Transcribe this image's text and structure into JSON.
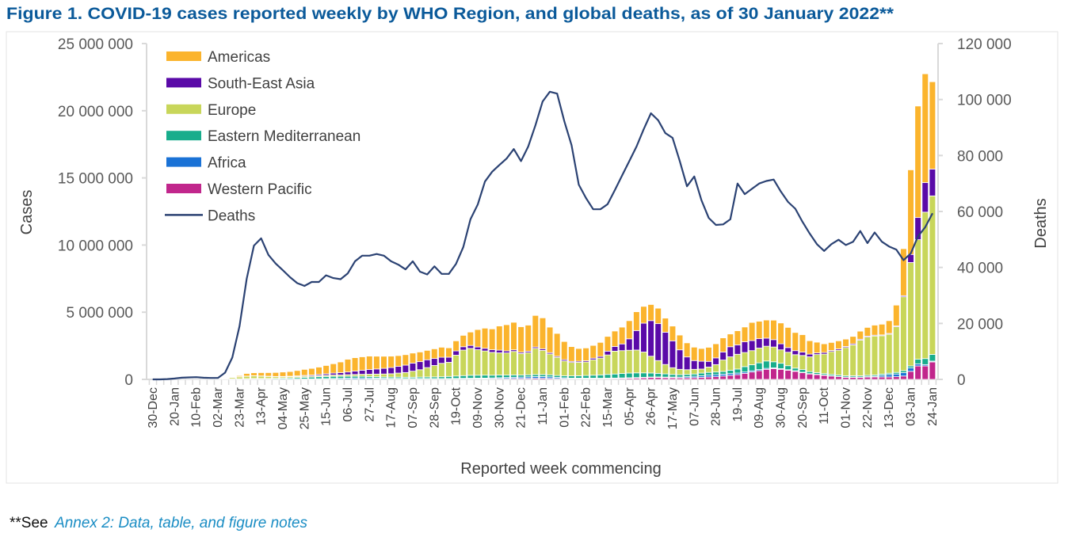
{
  "figure": {
    "title": "Figure 1. COVID-19 cases reported weekly by WHO Region, and global deaths, as of 30 January 2022**",
    "footnote_prefix": "**See",
    "footnote_link": "Annex 2: Data, table, and figure notes",
    "title_color": "#0b5a9a",
    "link_color": "#1a8dc4"
  },
  "chart_data": {
    "type": "bar",
    "stacked": true,
    "xlabel": "Reported week commencing",
    "x_tick_labels": [
      "30-Dec",
      "20-Jan",
      "10-Feb",
      "02-Mar",
      "23-Mar",
      "13-Apr",
      "04-May",
      "25-May",
      "15-Jun",
      "06-Jul",
      "27-Jul",
      "17-Aug",
      "07-Sep",
      "28-Sep",
      "19-Oct",
      "09-Nov",
      "30-Nov",
      "21-Dec",
      "11-Jan",
      "01-Feb",
      "22-Feb",
      "15-Mar",
      "05-Apr",
      "26-Apr",
      "17-May",
      "07-Jun",
      "28-Jun",
      "19-Jul",
      "09-Aug",
      "30-Aug",
      "20-Sep",
      "11-Oct",
      "01-Nov",
      "22-Nov",
      "13-Dec",
      "03-Jan",
      "24-Jan"
    ],
    "x_tick_every_weeks": 3,
    "y_left": {
      "label": "Cases",
      "range": [
        0,
        25000000
      ],
      "tick_values": [
        0,
        5000000,
        10000000,
        15000000,
        20000000,
        25000000
      ],
      "tick_labels": [
        "0",
        "5 000 000",
        "10 000 000",
        "15 000 000",
        "20 000 000",
        "25 000 000"
      ]
    },
    "y_right": {
      "label": "Deaths",
      "range": [
        0,
        120000
      ],
      "tick_values": [
        0,
        20000,
        40000,
        60000,
        80000,
        100000,
        120000
      ],
      "tick_labels": [
        "0",
        "20 000",
        "40 000",
        "60 000",
        "80 000",
        "100 000",
        "120 000"
      ]
    },
    "grid": false,
    "legend_position": "top-left",
    "series": [
      {
        "name": "Americas",
        "color": "#fbb42d",
        "axis": "left",
        "type": "bar",
        "values": [
          0,
          0,
          0,
          0,
          0,
          0,
          0,
          0,
          0,
          0,
          10000.0,
          40000.0,
          80000.0,
          200000.0,
          220000.0,
          250000.0,
          270000.0,
          300000.0,
          330000.0,
          350000.0,
          400000.0,
          450000.0,
          500000.0,
          550000.0,
          620000.0,
          700000.0,
          800000.0,
          950000.0,
          1000000.0,
          1000000.0,
          1000000.0,
          950000.0,
          900000.0,
          850000.0,
          800000.0,
          780000.0,
          750000.0,
          720000.0,
          700000.0,
          720000.0,
          750000.0,
          700000.0,
          750000.0,
          850000.0,
          1000000.0,
          1300000.0,
          1500000.0,
          1550000.0,
          1800000.0,
          1950000.0,
          2050000.0,
          1900000.0,
          1950000.0,
          2350000.0,
          2300000.0,
          1900000.0,
          1700000.0,
          1350000.0,
          1100000.0,
          950000.0,
          950000.0,
          950000.0,
          1050000.0,
          1100000.0,
          1150000.0,
          1250000.0,
          1350000.0,
          1400000.0,
          1250000.0,
          1200000.0,
          1150000.0,
          1050000.0,
          1100000.0,
          1100000.0,
          1050000.0,
          1000000.0,
          950000.0,
          1050000.0,
          1050000.0,
          1050000.0,
          950000.0,
          1050000.0,
          1100000.0,
          1350000.0,
          1300000.0,
          1350000.0,
          1450000.0,
          1550000.0,
          1500000.0,
          1350000.0,
          1300000.0,
          1000000.0,
          800000.0,
          650000.0,
          600000.0,
          600000.0,
          550000.0,
          550000.0,
          600000.0,
          650000.0,
          750000.0,
          800000.0,
          950000.0,
          1550000.0,
          3500000.0,
          6300000.0,
          8300000.0,
          8100000.0,
          6500000.0
        ]
      },
      {
        "name": "South-East Asia",
        "color": "#5a0aa8",
        "axis": "left",
        "type": "bar",
        "values": [
          0,
          0,
          0,
          0,
          0,
          0,
          0,
          0,
          0,
          0,
          0,
          0,
          10000.0,
          10000.0,
          10000.0,
          10000.0,
          20000.0,
          20000.0,
          30000.0,
          40000.0,
          50000.0,
          60000.0,
          70000.0,
          90000.0,
          110000.0,
          140000.0,
          170000.0,
          200000.0,
          250000.0,
          300000.0,
          350000.0,
          380000.0,
          420000.0,
          460000.0,
          500000.0,
          550000.0,
          600000.0,
          600000.0,
          580000.0,
          520000.0,
          450000.0,
          380000.0,
          320000.0,
          250000.0,
          220000.0,
          200000.0,
          200000.0,
          200000.0,
          200000.0,
          150000.0,
          120000.0,
          100000.0,
          100000.0,
          100000.0,
          120000.0,
          100000.0,
          80000.0,
          100000.0,
          80000.0,
          80000.0,
          100000.0,
          120000.0,
          120000.0,
          280000.0,
          350000.0,
          500000.0,
          850000.0,
          1450000.0,
          2150000.0,
          2650000.0,
          2750000.0,
          2400000.0,
          2000000.0,
          1450000.0,
          950000.0,
          650000.0,
          580000.0,
          420000.0,
          500000.0,
          600000.0,
          750000.0,
          700000.0,
          800000.0,
          750000.0,
          700000.0,
          600000.0,
          550000.0,
          450000.0,
          350000.0,
          300000.0,
          250000.0,
          200000.0,
          120000.0,
          120000.0,
          80000.0,
          100000.0,
          80000.0,
          80000.0,
          70000.0,
          70000.0,
          60000.0,
          60000.0,
          60000.0,
          60000.0,
          80000.0,
          600000.0,
          1650000.0,
          2200000.0,
          2000000.0
        ]
      },
      {
        "name": "Europe",
        "color": "#c8d65a",
        "axis": "left",
        "type": "bar",
        "values": [
          0,
          0,
          0,
          0,
          0,
          0,
          0,
          2000.0,
          10000.0,
          20000.0,
          50000.0,
          100000.0,
          150000.0,
          180000.0,
          200000.0,
          180000.0,
          150000.0,
          120000.0,
          100000.0,
          90000.0,
          80000.0,
          80000.0,
          80000.0,
          80000.0,
          90000.0,
          100000.0,
          100000.0,
          120000.0,
          130000.0,
          150000.0,
          170000.0,
          200000.0,
          220000.0,
          250000.0,
          300000.0,
          350000.0,
          450000.0,
          550000.0,
          700000.0,
          850000.0,
          1000000.0,
          1050000.0,
          1550000.0,
          1900000.0,
          2000000.0,
          1900000.0,
          1800000.0,
          1700000.0,
          1650000.0,
          1650000.0,
          1750000.0,
          1600000.0,
          1650000.0,
          1950000.0,
          1800000.0,
          1550000.0,
          1350000.0,
          1100000.0,
          1000000.0,
          1000000.0,
          1000000.0,
          1150000.0,
          1250000.0,
          1450000.0,
          1700000.0,
          1700000.0,
          1700000.0,
          1700000.0,
          1550000.0,
          1250000.0,
          950000.0,
          700000.0,
          500000.0,
          400000.0,
          350000.0,
          350000.0,
          300000.0,
          400000.0,
          550000.0,
          850000.0,
          1000000.0,
          1100000.0,
          1050000.0,
          1050000.0,
          1100000.0,
          1100000.0,
          1100000.0,
          1000000.0,
          1000000.0,
          1000000.0,
          1050000.0,
          1100000.0,
          1350000.0,
          1450000.0,
          1700000.0,
          1850000.0,
          2100000.0,
          2300000.0,
          2650000.0,
          2850000.0,
          2900000.0,
          2850000.0,
          2900000.0,
          3400000.0,
          5500000.0,
          7700000.0,
          8900000.0,
          10900000.0,
          11800000.0
        ]
      },
      {
        "name": "Eastern Mediterranean",
        "color": "#18ad8c",
        "axis": "left",
        "type": "bar",
        "values": [
          0,
          0,
          0,
          0,
          0,
          0,
          0,
          0,
          5000.0,
          10000.0,
          20000.0,
          30000.0,
          30000.0,
          40000.0,
          50000.0,
          50000.0,
          50000.0,
          60000.0,
          70000.0,
          80000.0,
          100000.0,
          120000.0,
          130000.0,
          150000.0,
          160000.0,
          160000.0,
          150000.0,
          140000.0,
          130000.0,
          120000.0,
          110000.0,
          100000.0,
          100000.0,
          100000.0,
          100000.0,
          100000.0,
          100000.0,
          110000.0,
          120000.0,
          130000.0,
          140000.0,
          160000.0,
          180000.0,
          200000.0,
          220000.0,
          220000.0,
          220000.0,
          200000.0,
          200000.0,
          180000.0,
          170000.0,
          150000.0,
          150000.0,
          150000.0,
          150000.0,
          150000.0,
          140000.0,
          150000.0,
          170000.0,
          180000.0,
          200000.0,
          220000.0,
          250000.0,
          280000.0,
          300000.0,
          330000.0,
          350000.0,
          350000.0,
          330000.0,
          300000.0,
          270000.0,
          240000.0,
          200000.0,
          180000.0,
          170000.0,
          170000.0,
          200000.0,
          200000.0,
          200000.0,
          200000.0,
          250000.0,
          300000.0,
          400000.0,
          450000.0,
          500000.0,
          550000.0,
          450000.0,
          400000.0,
          300000.0,
          200000.0,
          200000.0,
          150000.0,
          120000.0,
          100000.0,
          100000.0,
          100000.0,
          100000.0,
          100000.0,
          100000.0,
          100000.0,
          100000.0,
          100000.0,
          100000.0,
          120000.0,
          150000.0,
          150000.0,
          350000.0,
          450000.0,
          500000.0
        ]
      },
      {
        "name": "Africa",
        "color": "#1a72d6",
        "axis": "left",
        "type": "bar",
        "values": [
          0,
          0,
          0,
          0,
          0,
          0,
          0,
          0,
          0,
          0,
          0,
          1000.0,
          2000.0,
          4000.0,
          6000.0,
          8000.0,
          10000.0,
          12000.0,
          15000.0,
          20000.0,
          25000.0,
          30000.0,
          35000.0,
          40000.0,
          50000.0,
          60000.0,
          70000.0,
          80000.0,
          90000.0,
          90000.0,
          80000.0,
          70000.0,
          60000.0,
          50000.0,
          50000.0,
          40000.0,
          40000.0,
          40000.0,
          40000.0,
          35000.0,
          35000.0,
          40000.0,
          45000.0,
          50000.0,
          50000.0,
          50000.0,
          50000.0,
          60000.0,
          70000.0,
          80000.0,
          90000.0,
          100000.0,
          120000.0,
          130000.0,
          130000.0,
          120000.0,
          90000.0,
          70000.0,
          50000.0,
          50000.0,
          50000.0,
          50000.0,
          40000.0,
          40000.0,
          40000.0,
          40000.0,
          40000.0,
          35000.0,
          35000.0,
          35000.0,
          40000.0,
          40000.0,
          50000.0,
          60000.0,
          80000.0,
          100000.0,
          120000.0,
          140000.0,
          150000.0,
          140000.0,
          130000.0,
          120000.0,
          100000.0,
          90000.0,
          80000.0,
          70000.0,
          60000.0,
          50000.0,
          40000.0,
          40000.0,
          30000.0,
          30000.0,
          30000.0,
          30000.0,
          20000.0,
          20000.0,
          20000.0,
          20000.0,
          20000.0,
          30000.0,
          50000.0,
          120000.0,
          180000.0,
          200000.0,
          250000.0,
          250000.0,
          150000.0,
          100000.0,
          60000.0
        ]
      },
      {
        "name": "Western Pacific",
        "color": "#c1268c",
        "axis": "left",
        "type": "bar",
        "values": [
          0,
          1000.0,
          5000.0,
          15000.0,
          20000.0,
          15000.0,
          10000.0,
          5000.0,
          4000.0,
          4000.0,
          4000.0,
          5000.0,
          6000.0,
          7000.0,
          7000.0,
          6000.0,
          5000.0,
          4000.0,
          4000.0,
          4000.0,
          4000.0,
          4000.0,
          4000.0,
          5000.0,
          5000.0,
          6000.0,
          7000.0,
          10000.0,
          15000.0,
          20000.0,
          25000.0,
          25000.0,
          22000.0,
          20000.0,
          20000.0,
          20000.0,
          20000.0,
          20000.0,
          20000.0,
          20000.0,
          20000.0,
          20000.0,
          25000.0,
          30000.0,
          35000.0,
          40000.0,
          45000.0,
          50000.0,
          55000.0,
          60000.0,
          70000.0,
          70000.0,
          70000.0,
          80000.0,
          80000.0,
          70000.0,
          60000.0,
          50000.0,
          40000.0,
          40000.0,
          40000.0,
          40000.0,
          45000.0,
          50000.0,
          60000.0,
          70000.0,
          80000.0,
          100000.0,
          120000.0,
          140000.0,
          140000.0,
          130000.0,
          120000.0,
          110000.0,
          120000.0,
          130000.0,
          150000.0,
          180000.0,
          200000.0,
          250000.0,
          300000.0,
          350000.0,
          450000.0,
          550000.0,
          650000.0,
          750000.0,
          800000.0,
          750000.0,
          680000.0,
          600000.0,
          500000.0,
          400000.0,
          350000.0,
          300000.0,
          250000.0,
          200000.0,
          150000.0,
          150000.0,
          150000.0,
          170000.0,
          180000.0,
          180000.0,
          180000.0,
          200000.0,
          250000.0,
          600000.0,
          1000000.0,
          1000000.0,
          1300000.0
        ]
      },
      {
        "name": "Deaths",
        "color": "#2b4273",
        "axis": "right",
        "type": "line",
        "values": [
          0,
          0,
          100,
          300,
          600,
          700,
          800,
          600,
          500,
          500,
          2400,
          7800,
          19000,
          36000,
          47800,
          50400,
          44500,
          41400,
          39000,
          36500,
          34400,
          33400,
          34800,
          34800,
          37200,
          36200,
          35800,
          37900,
          42200,
          44200,
          44200,
          44800,
          44200,
          42200,
          41000,
          39300,
          42200,
          38500,
          37500,
          40400,
          37700,
          37700,
          41300,
          47250,
          57200,
          62500,
          70700,
          74200,
          76600,
          78900,
          82300,
          78000,
          83200,
          90800,
          99300,
          102800,
          102100,
          92200,
          83700,
          69600,
          64800,
          60800,
          60800,
          62600,
          67600,
          72800,
          78000,
          83200,
          89400,
          95100,
          92600,
          88000,
          86300,
          78000,
          69000,
          72500,
          64000,
          57700,
          55200,
          55400,
          57200,
          70000,
          66200,
          68100,
          70000,
          70900,
          71400,
          67100,
          63400,
          61000,
          56300,
          52100,
          48300,
          45900,
          48300,
          49900,
          48000,
          49200,
          53000,
          48700,
          52500,
          49200,
          47500,
          46400,
          42600,
          45000,
          51100,
          54400,
          59300
        ]
      }
    ]
  }
}
